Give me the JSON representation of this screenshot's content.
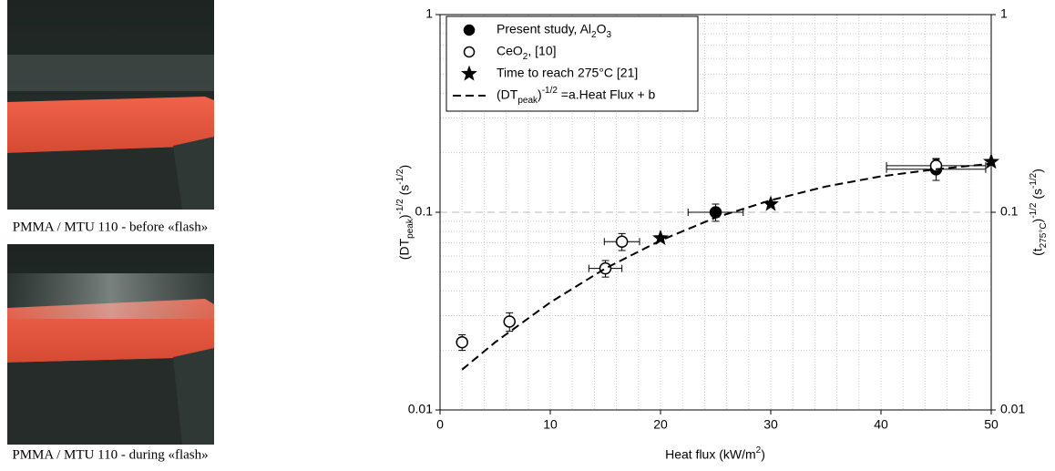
{
  "photos": [
    {
      "caption": "PMMA / MTU 110 - before «flash»"
    },
    {
      "caption": "PMMA / MTU 110 - during «flash»"
    }
  ],
  "chart_data": {
    "type": "scatter",
    "xlabel": "Heat flux (kW/m2)",
    "ylabel": "(DTpeak)-1/2 (s-1/2)",
    "y2label": "(t275°C)-1/2 (s-1/2)",
    "xlim": [
      0,
      50
    ],
    "xticks": [
      0,
      10,
      20,
      30,
      40,
      50
    ],
    "ylim": [
      0.01,
      1
    ],
    "yticks": [
      0.01,
      0.1,
      1
    ],
    "y2lim": [
      0.01,
      1
    ],
    "y2ticks": [
      0.01,
      0.1,
      1
    ],
    "ylog": true,
    "grid": true,
    "legend": "upper left",
    "series": [
      {
        "name": "Present study, Al2O3",
        "type": "scatter",
        "marker": "circle",
        "color": "#000000",
        "fill": "#000000",
        "x": [
          25,
          45
        ],
        "values": [
          0.1,
          0.165
        ],
        "xerr": [
          2.5,
          4.5
        ],
        "yerr": [
          0.01,
          0.02
        ]
      },
      {
        "name": "CeO2, [10]",
        "type": "scatter",
        "marker": "circle",
        "color": "#000000",
        "fill": "#ffffff",
        "x": [
          2,
          6.3,
          15,
          16.5,
          45
        ],
        "values": [
          0.022,
          0.028,
          0.052,
          0.071,
          0.172
        ],
        "xerr": [
          0,
          0,
          1.5,
          1.6,
          4.5
        ],
        "yerr": [
          0.002,
          0.003,
          0.005,
          0.007,
          0.015
        ]
      },
      {
        "name": "Time to reach 275°C [21]",
        "type": "scatter",
        "marker": "star",
        "color": "#000000",
        "fill": "#000000",
        "x": [
          20,
          30,
          50
        ],
        "values": [
          0.074,
          0.11,
          0.18
        ]
      },
      {
        "name": "(DTpeak)-1/2 =a.Heat Flux + b",
        "type": "line",
        "dash": "9 5",
        "color": "#000000",
        "x": [
          2,
          5,
          10,
          15,
          20,
          25,
          30,
          35,
          40,
          45,
          50
        ],
        "values": [
          0.016,
          0.022,
          0.035,
          0.052,
          0.072,
          0.094,
          0.115,
          0.135,
          0.152,
          0.165,
          0.176
        ]
      }
    ]
  }
}
